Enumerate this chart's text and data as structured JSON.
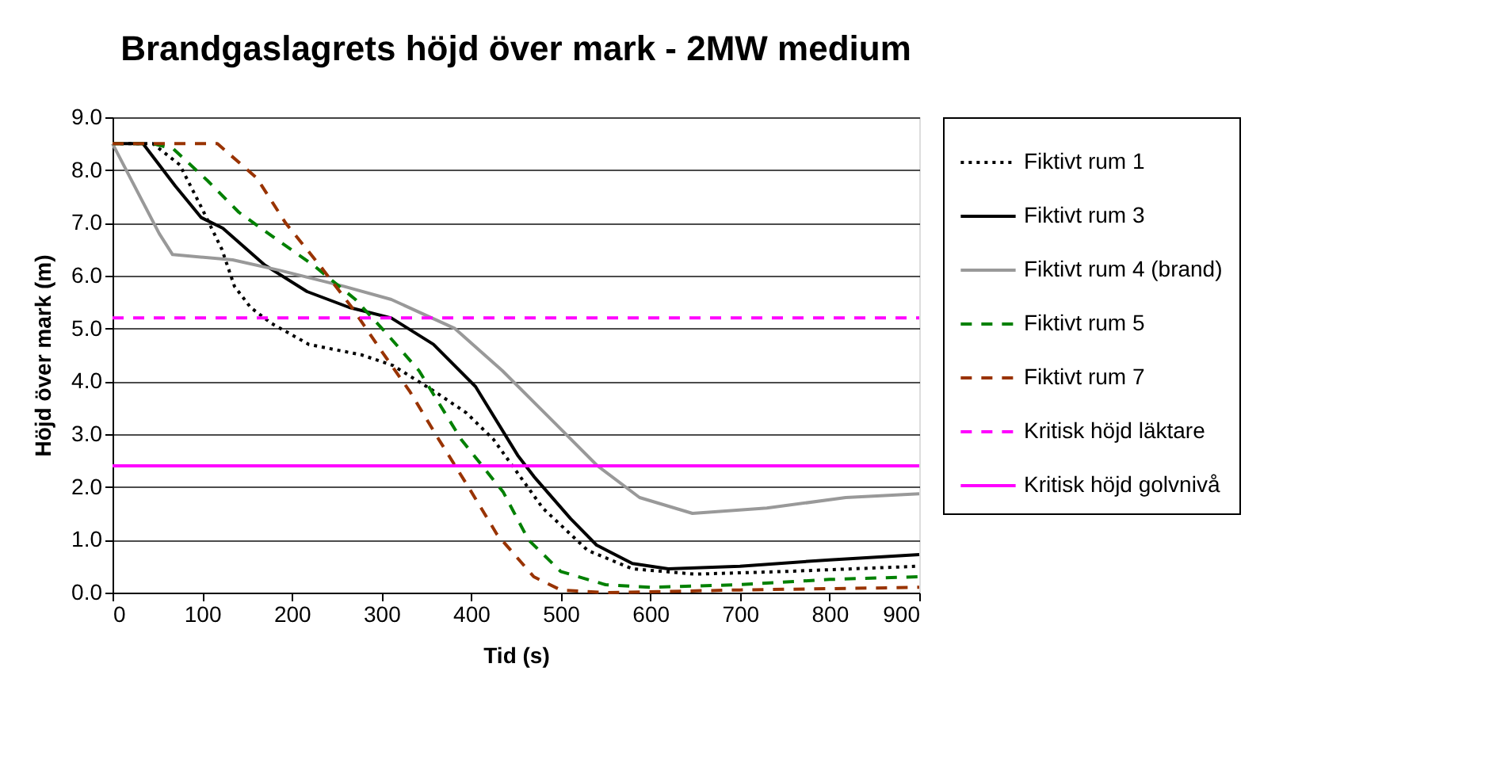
{
  "chart_data": {
    "type": "line",
    "title": "Brandgaslagrets höjd över mark - 2MW medium",
    "xlabel": "Tid (s)",
    "ylabel": "Höjd över mark (m)",
    "xlim": [
      0,
      900
    ],
    "xticks": [
      0,
      100,
      200,
      300,
      400,
      500,
      600,
      700,
      800,
      900
    ],
    "ylim": [
      0,
      9
    ],
    "yticks": [
      {
        "value": 0,
        "label": "0.0"
      },
      {
        "value": 1,
        "label": "1.0"
      },
      {
        "value": 2,
        "label": "2.0"
      },
      {
        "value": 3,
        "label": "3.0"
      },
      {
        "value": 4,
        "label": "4.0"
      },
      {
        "value": 5,
        "label": "5.0"
      },
      {
        "value": 6,
        "label": "6.0"
      },
      {
        "value": 7,
        "label": "7.0"
      },
      {
        "value": 8,
        "label": "8.0"
      },
      {
        "value": 9,
        "label": "9.0"
      }
    ],
    "grid": "y",
    "legend": "right",
    "marker": "none",
    "series": [
      {
        "name": "Fiktivt rum 1",
        "color": "#000000",
        "line_style": "dotted",
        "x": [
          0,
          45,
          75,
          99,
          122,
          136,
          154,
          177,
          219,
          278,
          313,
          360,
          395,
          425,
          480,
          530,
          580,
          650,
          750,
          900
        ],
        "values": [
          8.5,
          8.5,
          8.1,
          7.3,
          6.5,
          5.8,
          5.4,
          5.1,
          4.7,
          4.5,
          4.3,
          3.8,
          3.4,
          2.9,
          1.6,
          0.8,
          0.45,
          0.35,
          0.4,
          0.5
        ]
      },
      {
        "name": "Fiktivt rum 3",
        "color": "#000000",
        "line_style": "solid",
        "x": [
          0,
          34,
          70,
          99,
          123,
          170,
          217,
          264,
          311,
          358,
          405,
          452,
          470,
          511,
          540,
          580,
          620,
          700,
          800,
          900
        ],
        "values": [
          8.5,
          8.5,
          7.7,
          7.1,
          6.9,
          6.2,
          5.7,
          5.4,
          5.2,
          4.7,
          3.9,
          2.6,
          2.2,
          1.4,
          0.9,
          0.55,
          0.45,
          0.5,
          0.62,
          0.72
        ]
      },
      {
        "name": "Fiktivt rum 4 (brand)",
        "color": "#999999",
        "line_style": "solid",
        "x": [
          0,
          52,
          67,
          134,
          187,
          258,
          311,
          382,
          435,
          494,
          541,
          588,
          647,
          730,
          818,
          900
        ],
        "values": [
          8.5,
          6.8,
          6.4,
          6.3,
          6.1,
          5.8,
          5.55,
          5.0,
          4.2,
          3.2,
          2.4,
          1.8,
          1.5,
          1.6,
          1.8,
          1.87
        ]
      },
      {
        "name": "Fiktivt rum 5",
        "color": "#008000",
        "line_style": "dashed",
        "x": [
          0,
          45,
          68,
          106,
          141,
          182,
          224,
          271,
          306,
          342,
          389,
          436,
          464,
          500,
          550,
          600,
          700,
          800,
          900
        ],
        "values": [
          8.5,
          8.5,
          8.4,
          7.8,
          7.2,
          6.7,
          6.2,
          5.55,
          4.9,
          4.2,
          2.9,
          1.9,
          1.0,
          0.4,
          0.15,
          0.1,
          0.15,
          0.25,
          0.3
        ]
      },
      {
        "name": "Fiktivt rum 7",
        "color": "#993300",
        "line_style": "dashed",
        "x": [
          0,
          64,
          117,
          161,
          193,
          231,
          267,
          299,
          332,
          364,
          397,
          429,
          470,
          500,
          550,
          700,
          900
        ],
        "values": [
          8.5,
          8.5,
          8.5,
          7.85,
          7.0,
          6.2,
          5.4,
          4.6,
          3.8,
          2.9,
          2.0,
          1.1,
          0.3,
          0.05,
          0.0,
          0.05,
          0.1
        ]
      },
      {
        "name": "Kritisk höjd läktare",
        "color": "#ff00ff",
        "line_style": "dashed",
        "x": [
          0,
          900
        ],
        "values": [
          5.2,
          5.2
        ]
      },
      {
        "name": "Kritisk höjd golvnivå",
        "color": "#ff00ff",
        "line_style": "solid",
        "x": [
          0,
          900
        ],
        "values": [
          2.4,
          2.4
        ]
      }
    ]
  }
}
